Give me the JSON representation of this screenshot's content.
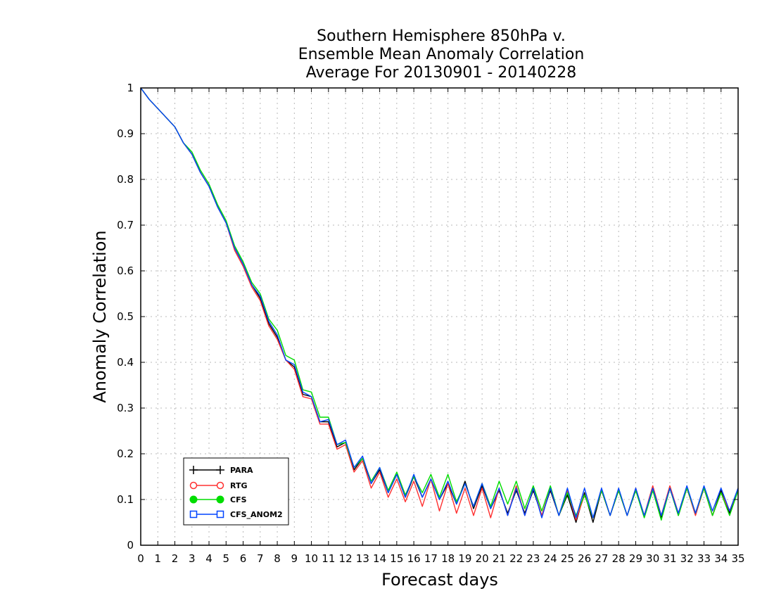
{
  "chart_data": {
    "type": "line",
    "title": [
      "Southern Hemisphere 850hPa v.",
      "Ensemble Mean Anomaly Correlation",
      "Average For 20130901 - 20140228"
    ],
    "xlabel": "Forecast days",
    "ylabel": "Anomaly Correlation",
    "xlim": [
      0,
      35
    ],
    "ylim": [
      0,
      1
    ],
    "xticks": [
      0,
      1,
      2,
      3,
      4,
      5,
      6,
      7,
      8,
      9,
      10,
      11,
      12,
      13,
      14,
      15,
      16,
      17,
      18,
      19,
      20,
      21,
      22,
      23,
      24,
      25,
      26,
      27,
      28,
      29,
      30,
      31,
      32,
      33,
      34,
      35
    ],
    "yticks": [
      0,
      0.1,
      0.2,
      0.3,
      0.4,
      0.5,
      0.6,
      0.7,
      0.8,
      0.9,
      1
    ],
    "ytick_labels": [
      "0",
      "0.1",
      "0.2",
      "0.3",
      "0.4",
      "0.5",
      "0.6",
      "0.7",
      "0.8",
      "0.9",
      "1"
    ],
    "grid": true,
    "legend_position": "bottom-left",
    "x": [
      0,
      0.5,
      1,
      1.5,
      2,
      2.5,
      3,
      3.5,
      4,
      4.5,
      5,
      5.5,
      6,
      6.5,
      7,
      7.5,
      8,
      8.5,
      9,
      9.5,
      10,
      10.5,
      11,
      11.5,
      12,
      12.5,
      13,
      13.5,
      14,
      14.5,
      15,
      15.5,
      16,
      16.5,
      17,
      17.5,
      18,
      18.5,
      19,
      19.5,
      20,
      20.5,
      21,
      21.5,
      22,
      22.5,
      23,
      23.5,
      24,
      24.5,
      25,
      25.5,
      26,
      26.5,
      27,
      27.5,
      28,
      28.5,
      29,
      29.5,
      30,
      30.5,
      31,
      31.5,
      32,
      32.5,
      33,
      33.5,
      34,
      34.5,
      35
    ],
    "series": [
      {
        "name": "PARA",
        "color": "#000000",
        "marker": "plus",
        "values": [
          1.0,
          0.975,
          0.955,
          0.935,
          0.915,
          0.88,
          0.855,
          0.815,
          0.785,
          0.74,
          0.705,
          0.65,
          0.615,
          0.57,
          0.54,
          0.485,
          0.455,
          0.405,
          0.39,
          0.33,
          0.325,
          0.27,
          0.27,
          0.215,
          0.225,
          0.165,
          0.19,
          0.135,
          0.165,
          0.115,
          0.155,
          0.105,
          0.15,
          0.105,
          0.145,
          0.1,
          0.135,
          0.09,
          0.14,
          0.08,
          0.13,
          0.08,
          0.12,
          0.07,
          0.12,
          0.07,
          0.12,
          0.065,
          0.12,
          0.065,
          0.11,
          0.05,
          0.115,
          0.05,
          0.12,
          0.065,
          0.12,
          0.065,
          0.12,
          0.065,
          0.125,
          0.06,
          0.125,
          0.065,
          0.125,
          0.07,
          0.125,
          0.065,
          0.12,
          0.07,
          0.125
        ]
      },
      {
        "name": "RTG",
        "color": "#ff3030",
        "marker": "open-circle",
        "values": [
          1.0,
          0.975,
          0.955,
          0.935,
          0.915,
          0.88,
          0.855,
          0.815,
          0.785,
          0.74,
          0.705,
          0.645,
          0.61,
          0.565,
          0.535,
          0.48,
          0.45,
          0.405,
          0.385,
          0.325,
          0.32,
          0.265,
          0.265,
          0.21,
          0.22,
          0.16,
          0.185,
          0.125,
          0.16,
          0.105,
          0.145,
          0.095,
          0.14,
          0.085,
          0.145,
          0.075,
          0.135,
          0.07,
          0.125,
          0.065,
          0.125,
          0.06,
          0.125,
          0.065,
          0.13,
          0.065,
          0.125,
          0.065,
          0.125,
          0.065,
          0.12,
          0.055,
          0.11,
          0.06,
          0.12,
          0.065,
          0.12,
          0.065,
          0.125,
          0.065,
          0.13,
          0.065,
          0.13,
          0.07,
          0.125,
          0.065,
          0.125,
          0.065,
          0.115,
          0.075,
          0.12
        ]
      },
      {
        "name": "CFS",
        "color": "#00dd00",
        "marker": "filled-circle",
        "values": [
          1.0,
          0.975,
          0.955,
          0.935,
          0.915,
          0.88,
          0.86,
          0.82,
          0.79,
          0.745,
          0.71,
          0.655,
          0.62,
          0.575,
          0.55,
          0.495,
          0.47,
          0.415,
          0.405,
          0.34,
          0.335,
          0.28,
          0.28,
          0.22,
          0.225,
          0.17,
          0.19,
          0.14,
          0.17,
          0.12,
          0.16,
          0.11,
          0.15,
          0.115,
          0.155,
          0.105,
          0.155,
          0.095,
          0.135,
          0.085,
          0.135,
          0.085,
          0.14,
          0.09,
          0.14,
          0.08,
          0.13,
          0.075,
          0.13,
          0.065,
          0.115,
          0.065,
          0.11,
          0.06,
          0.12,
          0.065,
          0.12,
          0.065,
          0.12,
          0.06,
          0.12,
          0.055,
          0.125,
          0.065,
          0.125,
          0.07,
          0.125,
          0.065,
          0.115,
          0.065,
          0.12
        ]
      },
      {
        "name": "CFS_ANOM2",
        "color": "#0044ff",
        "marker": "open-square",
        "values": [
          1.0,
          0.975,
          0.955,
          0.935,
          0.915,
          0.88,
          0.855,
          0.815,
          0.785,
          0.74,
          0.705,
          0.65,
          0.615,
          0.57,
          0.545,
          0.49,
          0.46,
          0.405,
          0.395,
          0.335,
          0.325,
          0.27,
          0.275,
          0.22,
          0.23,
          0.17,
          0.195,
          0.135,
          0.17,
          0.115,
          0.155,
          0.105,
          0.155,
          0.105,
          0.145,
          0.1,
          0.14,
          0.09,
          0.135,
          0.085,
          0.135,
          0.08,
          0.125,
          0.065,
          0.125,
          0.065,
          0.125,
          0.06,
          0.125,
          0.065,
          0.125,
          0.06,
          0.125,
          0.06,
          0.125,
          0.065,
          0.125,
          0.065,
          0.125,
          0.065,
          0.125,
          0.065,
          0.125,
          0.07,
          0.13,
          0.07,
          0.13,
          0.075,
          0.125,
          0.075,
          0.125
        ]
      }
    ]
  }
}
